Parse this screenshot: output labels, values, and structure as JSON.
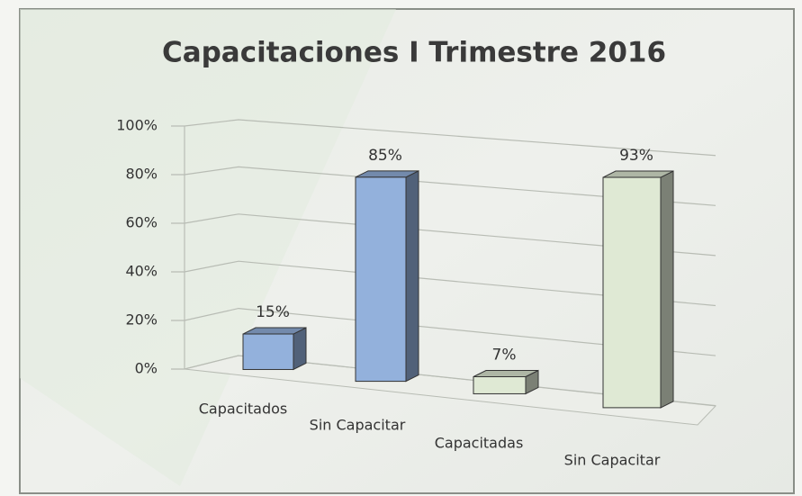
{
  "chart_data": {
    "type": "bar3d",
    "title": "Capacitaciones I Trimestre 2016",
    "categories": [
      "Capacitados",
      "Sin Capacitar",
      "Capacitadas",
      "Sin Capacitar"
    ],
    "values": [
      15,
      85,
      7,
      93
    ],
    "value_labels": [
      "15%",
      "85%",
      "7%",
      "93%"
    ],
    "colors": [
      "#93b1dc",
      "#93b1dc",
      "#dfe9d4",
      "#dfe9d4"
    ],
    "ylim": [
      0,
      100
    ],
    "yticks": [
      {
        "value": 0,
        "label": "0%"
      },
      {
        "value": 20,
        "label": "20%"
      },
      {
        "value": 40,
        "label": "40%"
      },
      {
        "value": 60,
        "label": "60%"
      },
      {
        "value": 80,
        "label": "80%"
      },
      {
        "value": 100,
        "label": "100%"
      }
    ],
    "grid": true
  }
}
